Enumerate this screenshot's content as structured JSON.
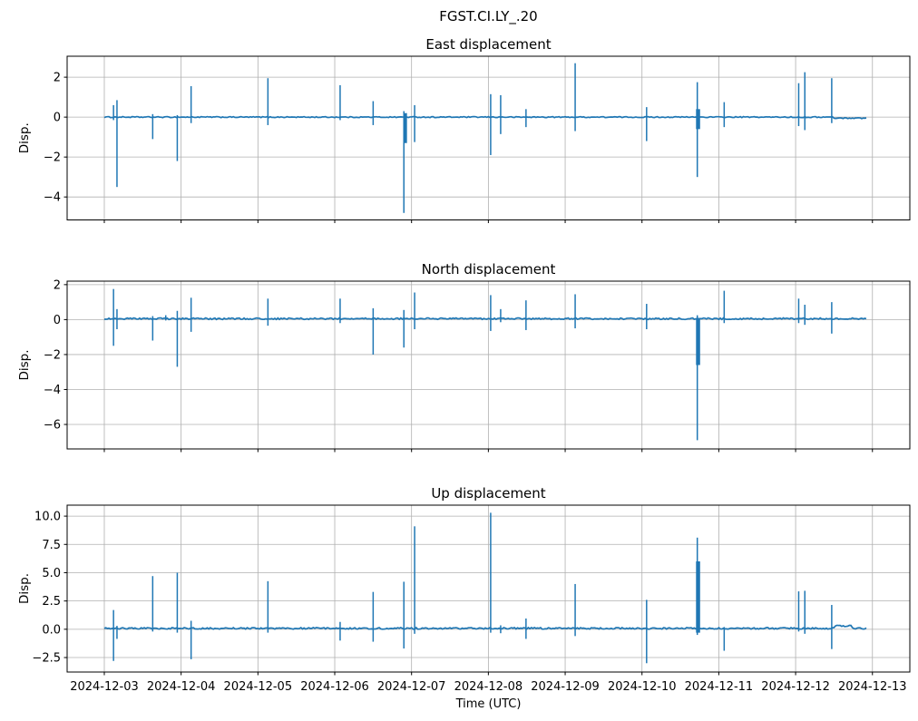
{
  "figure": {
    "suptitle": "FGST.CI.LY_.20",
    "xlabel": "Time (UTC)",
    "background_color": "#ffffff",
    "line_color": "#1f77b4",
    "grid_color": "#b0b0b0",
    "frame_color": "#000000",
    "text_color": "#000000"
  },
  "chart_data": {
    "type": "line",
    "title": "FGST.CI.LY_.20",
    "xlabel": "Time (UTC)",
    "x_tick_labels": [
      "2024-12-03",
      "2024-12-04",
      "2024-12-05",
      "2024-12-06",
      "2024-12-07",
      "2024-12-08",
      "2024-12-09",
      "2024-12-10",
      "2024-12-11",
      "2024-12-12",
      "2024-12-13"
    ],
    "x_tick_days": [
      0,
      1,
      2,
      3,
      4,
      5,
      6,
      7,
      8,
      9,
      10
    ],
    "xlim_days": [
      -0.484,
      10.487
    ],
    "data_start_day": 0.0,
    "data_end_day": 9.92,
    "grid": true,
    "legend": "none",
    "subplots": [
      {
        "title": "East displacement",
        "ylabel": "Disp.",
        "ytick_values": [
          2,
          0,
          -2,
          -4
        ],
        "ytick_labels": [
          "2",
          "0",
          "−2",
          "−4"
        ],
        "ylim": [
          -5.15,
          3.05
        ],
        "baseline": 0.0,
        "noise": 0.025,
        "segments": [
          [
            9.49,
            9.92,
            -0.05
          ]
        ],
        "spikes": [
          [
            0.12,
            0.6,
            -0.15
          ],
          [
            0.165,
            0.85,
            -3.5
          ],
          [
            0.63,
            0.15,
            -1.1
          ],
          [
            0.95,
            0.1,
            -2.2
          ],
          [
            1.13,
            1.55,
            -0.3
          ],
          [
            2.13,
            1.95,
            -0.4
          ],
          [
            3.07,
            1.6,
            -0.15
          ],
          [
            3.5,
            0.8,
            -0.4
          ],
          [
            3.9,
            0.3,
            -4.8
          ],
          [
            3.92,
            0.2,
            -1.3,
            3.5
          ],
          [
            4.04,
            0.6,
            -1.25
          ],
          [
            5.03,
            1.15,
            -1.9
          ],
          [
            5.16,
            1.1,
            -0.85
          ],
          [
            5.49,
            0.4,
            -0.5
          ],
          [
            6.13,
            2.7,
            -0.7
          ],
          [
            7.06,
            0.5,
            -1.2
          ],
          [
            7.72,
            1.75,
            -3.0
          ],
          [
            7.73,
            0.4,
            -0.6,
            4.5
          ],
          [
            8.07,
            0.75,
            -0.5
          ],
          [
            9.04,
            1.7,
            -0.45
          ],
          [
            9.12,
            2.25,
            -0.65
          ],
          [
            9.47,
            1.95,
            -0.3
          ]
        ]
      },
      {
        "title": "North displacement",
        "ylabel": "Disp.",
        "ytick_values": [
          2,
          0,
          -2,
          -4,
          -6
        ],
        "ytick_labels": [
          "2",
          "0",
          "−2",
          "−4",
          "−6"
        ],
        "ylim": [
          -7.4,
          2.2
        ],
        "baseline": 0.05,
        "noise": 0.045,
        "segments": [],
        "spikes": [
          [
            0.12,
            1.75,
            -1.5
          ],
          [
            0.165,
            0.6,
            -0.55
          ],
          [
            0.63,
            0.2,
            -1.2
          ],
          [
            0.8,
            0.25,
            -0.05
          ],
          [
            0.95,
            0.5,
            -2.7
          ],
          [
            1.13,
            1.25,
            -0.7
          ],
          [
            2.13,
            1.2,
            -0.35
          ],
          [
            3.07,
            1.2,
            -0.2
          ],
          [
            3.5,
            0.65,
            -2.0
          ],
          [
            3.9,
            0.55,
            -1.6
          ],
          [
            4.04,
            1.55,
            -0.55
          ],
          [
            5.03,
            1.4,
            -0.65
          ],
          [
            5.16,
            0.6,
            -0.15
          ],
          [
            5.49,
            1.1,
            -0.6
          ],
          [
            6.13,
            1.45,
            -0.5
          ],
          [
            7.06,
            0.9,
            -0.55
          ],
          [
            7.72,
            0.25,
            -6.9
          ],
          [
            7.73,
            0.1,
            -2.6,
            4.5
          ],
          [
            8.07,
            1.65,
            -0.2
          ],
          [
            9.04,
            1.2,
            -0.2
          ],
          [
            9.12,
            0.85,
            -0.3
          ],
          [
            9.47,
            1.0,
            -0.8
          ]
        ]
      },
      {
        "title": "Up displacement",
        "ylabel": "Disp.",
        "ytick_values": [
          10.0,
          7.5,
          5.0,
          2.5,
          0.0,
          -2.5
        ],
        "ytick_labels": [
          "10.0",
          "7.5",
          "5.0",
          "2.5",
          "0.0",
          "−2.5"
        ],
        "ylim": [
          -3.78,
          10.97
        ],
        "baseline": 0.08,
        "noise": 0.07,
        "segments": [
          [
            9.5,
            9.72,
            0.22
          ]
        ],
        "spikes": [
          [
            0.12,
            1.7,
            -2.8
          ],
          [
            0.165,
            0.3,
            -0.85
          ],
          [
            0.63,
            4.7,
            -0.2
          ],
          [
            0.95,
            5.0,
            -0.3
          ],
          [
            1.13,
            0.75,
            -2.65
          ],
          [
            2.13,
            4.25,
            -0.3
          ],
          [
            3.07,
            0.65,
            -1.0
          ],
          [
            3.5,
            3.3,
            -1.1
          ],
          [
            3.9,
            4.2,
            -1.7
          ],
          [
            4.04,
            9.1,
            -0.4
          ],
          [
            5.03,
            10.3,
            -0.3
          ],
          [
            5.16,
            0.35,
            -0.35
          ],
          [
            5.49,
            0.95,
            -0.85
          ],
          [
            6.13,
            4.0,
            -0.6
          ],
          [
            7.06,
            2.6,
            -3.0
          ],
          [
            7.72,
            8.1,
            -0.5
          ],
          [
            7.73,
            6.0,
            -0.3,
            4.5
          ],
          [
            8.07,
            0.2,
            -1.9
          ],
          [
            9.04,
            3.35,
            -0.2
          ],
          [
            9.12,
            3.4,
            -0.4
          ],
          [
            9.47,
            2.15,
            -1.75
          ]
        ]
      }
    ]
  }
}
